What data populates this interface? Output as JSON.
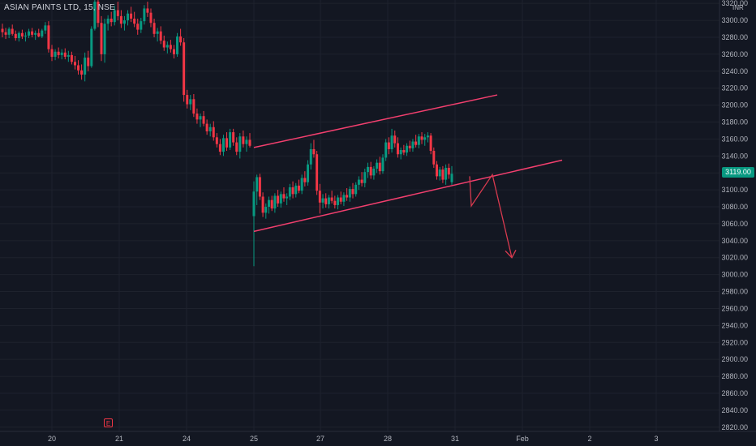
{
  "title": "ASIAN PAINTS LTD, 15, NSE",
  "currency": "INR",
  "last_price": "3119.00",
  "earnings_marker": "E",
  "colors": {
    "background": "#131722",
    "up": "#089981",
    "down": "#f23645",
    "trendline": "#f23f6e",
    "grid": "#1e222d",
    "axis_text": "#b2b5be"
  },
  "chart_data": {
    "type": "candlestick",
    "y_axis": {
      "ticks": [
        2820,
        2840,
        2860,
        2880,
        2900,
        2920,
        2940,
        2960,
        2980,
        3000,
        3020,
        3040,
        3060,
        3080,
        3100,
        3120,
        3140,
        3160,
        3180,
        3200,
        3220,
        3240,
        3260,
        3280,
        3300,
        3320
      ],
      "tick_labels": [
        "2820.00",
        "2840.00",
        "2860.00",
        "2880.00",
        "2900.00",
        "2920.00",
        "2940.00",
        "2960.00",
        "2980.00",
        "3000.00",
        "3020.00",
        "3040.00",
        "3060.00",
        "3080.00",
        "3100.00",
        "3120.00",
        "3140.00",
        "3160.00",
        "3180.00",
        "3200.00",
        "3220.00",
        "3240.00",
        "3260.00",
        "3280.00",
        "3300.00",
        "3320.00"
      ],
      "range": [
        2815,
        3324
      ]
    },
    "x_axis": {
      "labels": [
        "20",
        "21",
        "24",
        "25",
        "27",
        "28",
        "31",
        "Feb",
        "2",
        "3"
      ]
    },
    "grid": true,
    "candles": [
      [
        3290,
        3296,
        3280,
        3286
      ],
      [
        3286,
        3291,
        3278,
        3283
      ],
      [
        3283,
        3292,
        3279,
        3290
      ],
      [
        3290,
        3295,
        3282,
        3284
      ],
      [
        3284,
        3288,
        3276,
        3279
      ],
      [
        3279,
        3287,
        3275,
        3285
      ],
      [
        3285,
        3289,
        3278,
        3281
      ],
      [
        3281,
        3286,
        3275,
        3282
      ],
      [
        3282,
        3290,
        3279,
        3287
      ],
      [
        3287,
        3291,
        3280,
        3283
      ],
      [
        3283,
        3288,
        3277,
        3285
      ],
      [
        3285,
        3290,
        3280,
        3281
      ],
      [
        3281,
        3290,
        3279,
        3288
      ],
      [
        3288,
        3298,
        3284,
        3294
      ],
      [
        3294,
        3299,
        3262,
        3266
      ],
      [
        3266,
        3271,
        3252,
        3257
      ],
      [
        3257,
        3266,
        3253,
        3263
      ],
      [
        3263,
        3268,
        3255,
        3259
      ],
      [
        3259,
        3266,
        3254,
        3262
      ],
      [
        3262,
        3267,
        3254,
        3257
      ],
      [
        3257,
        3264,
        3251,
        3259
      ],
      [
        3259,
        3263,
        3248,
        3251
      ],
      [
        3251,
        3258,
        3242,
        3247
      ],
      [
        3247,
        3253,
        3236,
        3241
      ],
      [
        3241,
        3248,
        3230,
        3236
      ],
      [
        3236,
        3262,
        3228,
        3256
      ],
      [
        3256,
        3264,
        3240,
        3246
      ],
      [
        3246,
        3293,
        3244,
        3290
      ],
      [
        3290,
        3330,
        3288,
        3322
      ],
      [
        3322,
        3330,
        3292,
        3297
      ],
      [
        3297,
        3305,
        3252,
        3260
      ],
      [
        3260,
        3302,
        3250,
        3296
      ],
      [
        3296,
        3306,
        3288,
        3302
      ],
      [
        3302,
        3310,
        3293,
        3298
      ],
      [
        3298,
        3317,
        3294,
        3312
      ],
      [
        3312,
        3322,
        3300,
        3305
      ],
      [
        3305,
        3312,
        3291,
        3296
      ],
      [
        3296,
        3305,
        3288,
        3300
      ],
      [
        3300,
        3312,
        3294,
        3308
      ],
      [
        3308,
        3316,
        3298,
        3302
      ],
      [
        3302,
        3310,
        3292,
        3296
      ],
      [
        3296,
        3302,
        3283,
        3289
      ],
      [
        3289,
        3303,
        3285,
        3299
      ],
      [
        3299,
        3318,
        3295,
        3314
      ],
      [
        3314,
        3322,
        3304,
        3309
      ],
      [
        3309,
        3314,
        3292,
        3297
      ],
      [
        3297,
        3302,
        3280,
        3284
      ],
      [
        3284,
        3291,
        3275,
        3287
      ],
      [
        3287,
        3293,
        3272,
        3276
      ],
      [
        3276,
        3282,
        3264,
        3268
      ],
      [
        3268,
        3275,
        3261,
        3271
      ],
      [
        3271,
        3277,
        3262,
        3266
      ],
      [
        3266,
        3271,
        3255,
        3260
      ],
      [
        3260,
        3285,
        3257,
        3281
      ],
      [
        3281,
        3290,
        3270,
        3274
      ],
      [
        3274,
        3279,
        3204,
        3212
      ],
      [
        3212,
        3218,
        3196,
        3201
      ],
      [
        3201,
        3212,
        3194,
        3207
      ],
      [
        3207,
        3213,
        3186,
        3190
      ],
      [
        3190,
        3196,
        3178,
        3183
      ],
      [
        3183,
        3190,
        3174,
        3187
      ],
      [
        3187,
        3193,
        3175,
        3178
      ],
      [
        3178,
        3183,
        3165,
        3169
      ],
      [
        3169,
        3178,
        3163,
        3174
      ],
      [
        3174,
        3181,
        3158,
        3162
      ],
      [
        3162,
        3167,
        3150,
        3154
      ],
      [
        3154,
        3160,
        3141,
        3145
      ],
      [
        3145,
        3165,
        3140,
        3161
      ],
      [
        3161,
        3168,
        3146,
        3150
      ],
      [
        3150,
        3172,
        3147,
        3168
      ],
      [
        3168,
        3172,
        3152,
        3156
      ],
      [
        3156,
        3162,
        3141,
        3145
      ],
      [
        3145,
        3167,
        3137,
        3163
      ],
      [
        3163,
        3170,
        3150,
        3154
      ],
      [
        3154,
        3163,
        3145,
        3159
      ],
      [
        3159,
        3167,
        3150,
        3152
      ],
      [
        3069,
        3110,
        3010,
        3098
      ],
      [
        3098,
        3118,
        3082,
        3115
      ],
      [
        3115,
        3119,
        3088,
        3092
      ],
      [
        3092,
        3097,
        3068,
        3073
      ],
      [
        3073,
        3084,
        3066,
        3080
      ],
      [
        3080,
        3092,
        3072,
        3088
      ],
      [
        3088,
        3093,
        3075,
        3078
      ],
      [
        3078,
        3096,
        3073,
        3093
      ],
      [
        3093,
        3100,
        3080,
        3084
      ],
      [
        3084,
        3098,
        3079,
        3095
      ],
      [
        3095,
        3103,
        3086,
        3090
      ],
      [
        3090,
        3096,
        3082,
        3092
      ],
      [
        3092,
        3107,
        3088,
        3103
      ],
      [
        3103,
        3110,
        3090,
        3095
      ],
      [
        3095,
        3108,
        3091,
        3105
      ],
      [
        3105,
        3112,
        3096,
        3099
      ],
      [
        3099,
        3118,
        3095,
        3114
      ],
      [
        3114,
        3122,
        3104,
        3109
      ],
      [
        3109,
        3135,
        3105,
        3130
      ],
      [
        3130,
        3155,
        3124,
        3148
      ],
      [
        3148,
        3159,
        3138,
        3142
      ],
      [
        3142,
        3146,
        3094,
        3099
      ],
      [
        3099,
        3107,
        3072,
        3085
      ],
      [
        3085,
        3095,
        3078,
        3090
      ],
      [
        3090,
        3096,
        3079,
        3083
      ],
      [
        3083,
        3094,
        3078,
        3091
      ],
      [
        3091,
        3099,
        3084,
        3087
      ],
      [
        3087,
        3093,
        3078,
        3082
      ],
      [
        3082,
        3094,
        3077,
        3091
      ],
      [
        3091,
        3098,
        3083,
        3086
      ],
      [
        3086,
        3097,
        3081,
        3094
      ],
      [
        3094,
        3102,
        3087,
        3091
      ],
      [
        3091,
        3104,
        3086,
        3101
      ],
      [
        3101,
        3108,
        3090,
        3095
      ],
      [
        3095,
        3109,
        3092,
        3106
      ],
      [
        3106,
        3116,
        3100,
        3112
      ],
      [
        3112,
        3121,
        3104,
        3108
      ],
      [
        3108,
        3125,
        3103,
        3121
      ],
      [
        3121,
        3132,
        3114,
        3127
      ],
      [
        3127,
        3133,
        3113,
        3117
      ],
      [
        3117,
        3128,
        3112,
        3125
      ],
      [
        3125,
        3136,
        3120,
        3132
      ],
      [
        3132,
        3139,
        3118,
        3122
      ],
      [
        3122,
        3142,
        3119,
        3138
      ],
      [
        3138,
        3160,
        3134,
        3156
      ],
      [
        3156,
        3162,
        3142,
        3148
      ],
      [
        3148,
        3172,
        3144,
        3164
      ],
      [
        3164,
        3170,
        3150,
        3155
      ],
      [
        3155,
        3162,
        3138,
        3142
      ],
      [
        3142,
        3150,
        3136,
        3147
      ],
      [
        3147,
        3153,
        3141,
        3144
      ],
      [
        3144,
        3155,
        3140,
        3152
      ],
      [
        3152,
        3158,
        3145,
        3149
      ],
      [
        3149,
        3160,
        3145,
        3157
      ],
      [
        3157,
        3165,
        3150,
        3153
      ],
      [
        3153,
        3166,
        3149,
        3163
      ],
      [
        3163,
        3168,
        3154,
        3159
      ],
      [
        3159,
        3166,
        3152,
        3162
      ],
      [
        3162,
        3168,
        3156,
        3164
      ],
      [
        3164,
        3167,
        3142,
        3146
      ],
      [
        3146,
        3150,
        3126,
        3130
      ],
      [
        3130,
        3134,
        3112,
        3116
      ],
      [
        3116,
        3127,
        3111,
        3124
      ],
      [
        3124,
        3128,
        3108,
        3112
      ],
      [
        3112,
        3130,
        3106,
        3126
      ],
      [
        3126,
        3131,
        3113,
        3118
      ],
      [
        3109,
        3128,
        3106,
        3119
      ]
    ],
    "annotations": [
      {
        "type": "line",
        "from": [
          "25 open",
          "3150"
        ],
        "to": [
          "after 31",
          "3212"
        ],
        "label": "upper channel"
      },
      {
        "type": "line",
        "from": [
          "25 open",
          "3051"
        ],
        "to": [
          "after 31",
          "3135"
        ],
        "label": "lower channel"
      },
      {
        "type": "path",
        "label": "projected move",
        "points": [
          3116,
          3081,
          3118,
          3020
        ]
      }
    ]
  }
}
